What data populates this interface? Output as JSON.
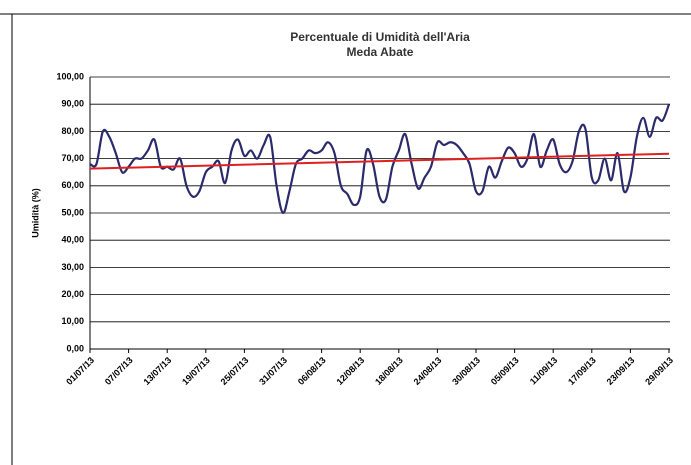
{
  "chart_data": {
    "type": "line",
    "title": "Percentuale di Umidità dell'Aria",
    "subtitle": "Meda Abate",
    "y_label": "Umidità (%)",
    "categories": [
      "01/07/13",
      null,
      null,
      null,
      null,
      null,
      "07/07/13",
      null,
      null,
      null,
      null,
      null,
      "13/07/13",
      null,
      null,
      null,
      null,
      null,
      "19/07/13",
      null,
      null,
      null,
      null,
      null,
      "25/07/13",
      null,
      null,
      null,
      null,
      null,
      "31/07/13",
      null,
      null,
      null,
      null,
      null,
      "06/08/13",
      null,
      null,
      null,
      null,
      null,
      "12/08/13",
      null,
      null,
      null,
      null,
      null,
      "18/08/13",
      null,
      null,
      null,
      null,
      null,
      "24/08/13",
      null,
      null,
      null,
      null,
      null,
      "30/08/13",
      null,
      null,
      null,
      null,
      null,
      "05/09/13",
      null,
      null,
      null,
      null,
      null,
      "11/09/13",
      null,
      null,
      null,
      null,
      null,
      "17/09/13",
      null,
      null,
      null,
      null,
      null,
      "23/09/13",
      null,
      null,
      null,
      null,
      null,
      "29/09/13"
    ],
    "series": [
      {
        "color": "#2b2a6b",
        "values": [
          68,
          68,
          80,
          78,
          72,
          65,
          67,
          70,
          70,
          73,
          77,
          67,
          67,
          66,
          70,
          60,
          56,
          58,
          65,
          67,
          69,
          61,
          73,
          77,
          71,
          73,
          70,
          75,
          78,
          60,
          50,
          58,
          68,
          70,
          73,
          72,
          73,
          76,
          72,
          60,
          57,
          53,
          56,
          73,
          68,
          56,
          55,
          67,
          73,
          79,
          68,
          59,
          63,
          67,
          76,
          75,
          76,
          75,
          72,
          68,
          58,
          58,
          67,
          63,
          69,
          74,
          72,
          67,
          70,
          79,
          67,
          73,
          77,
          68,
          65,
          69,
          80,
          81,
          63,
          62,
          70,
          62,
          72,
          58,
          63,
          78,
          85,
          78,
          85,
          84,
          90
        ]
      }
    ],
    "trendline": {
      "color": "#e02020",
      "values": [
        66.3,
        71.8
      ]
    },
    "ylim": [
      0,
      100
    ],
    "yticks": [
      {
        "value": 0,
        "label": "0,00"
      },
      {
        "value": 10,
        "label": "10,00"
      },
      {
        "value": 20,
        "label": "20,00"
      },
      {
        "value": 30,
        "label": "30,00"
      },
      {
        "value": 40,
        "label": "40,00"
      },
      {
        "value": 50,
        "label": "50,00"
      },
      {
        "value": 60,
        "label": "60,00"
      },
      {
        "value": 70,
        "label": "70,00"
      },
      {
        "value": 80,
        "label": "80,00"
      },
      {
        "value": 90,
        "label": "90,00"
      },
      {
        "value": 100,
        "label": "100,00"
      }
    ],
    "grid": true
  }
}
